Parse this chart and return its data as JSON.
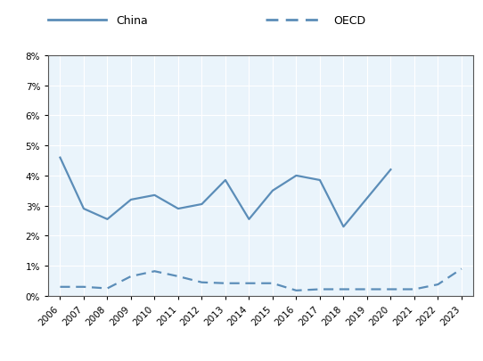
{
  "china_years": [
    2006,
    2007,
    2008,
    2009,
    2010,
    2011,
    2012,
    2013,
    2014,
    2015,
    2016,
    2017,
    2018,
    2019,
    2020,
    2021,
    2022,
    2023
  ],
  "china_values": [
    4.6,
    2.9,
    2.55,
    3.2,
    3.35,
    2.9,
    3.05,
    3.85,
    2.55,
    3.5,
    4.0,
    3.85,
    2.3,
    3.25,
    4.2,
    null,
    null,
    null
  ],
  "oecd_years": [
    2006,
    2007,
    2008,
    2009,
    2010,
    2011,
    2012,
    2013,
    2014,
    2015,
    2016,
    2017,
    2018,
    2019,
    2020,
    2021,
    2022,
    2023
  ],
  "oecd_values": [
    0.3,
    0.3,
    0.25,
    0.65,
    0.82,
    0.65,
    0.45,
    0.42,
    0.42,
    0.42,
    0.18,
    0.22,
    0.22,
    0.22,
    0.22,
    0.22,
    0.38,
    0.9
  ],
  "line_color": "#5B8DB8",
  "plot_bg_color": "#EAF4FB",
  "legend_bg": "#DCDCDC",
  "fig_bg": "#FFFFFF",
  "ylim": [
    0,
    8
  ],
  "yticks": [
    0,
    1,
    2,
    3,
    4,
    5,
    6,
    7,
    8
  ],
  "xlim_left": 2005.5,
  "xlim_right": 2023.5,
  "tick_fontsize": 7.5,
  "legend_fontsize": 9
}
